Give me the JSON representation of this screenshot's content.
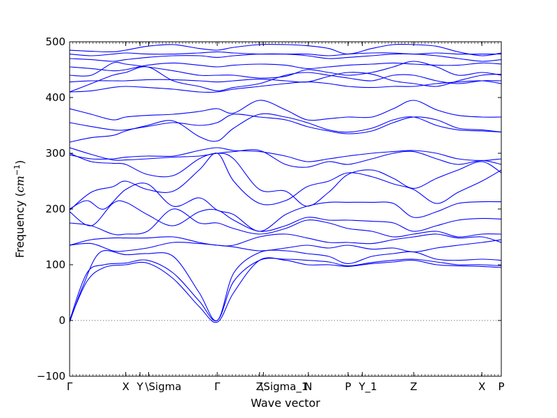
{
  "chart_data": {
    "type": "line",
    "xlabel": "Wave vector",
    "ylabel_prefix": "Frequency (",
    "ylabel_unit": "cm",
    "ylabel_exp": "−1",
    "ylabel_suffix": ")",
    "ylim": [
      -100,
      500
    ],
    "xlim": [
      0,
      1
    ],
    "y_ticks": [
      -100,
      0,
      100,
      200,
      300,
      400,
      500
    ],
    "y_tick_labels": [
      "−100",
      "0",
      "100",
      "200",
      "300",
      "400",
      "500"
    ],
    "x_ticks": [
      {
        "x": 0.0,
        "label": "Γ"
      },
      {
        "x": 0.13,
        "label": "X"
      },
      {
        "x": 0.163,
        "label": "Y"
      },
      {
        "x": 0.183,
        "label": "\\Sigma"
      },
      {
        "x": 0.342,
        "label": "Γ"
      },
      {
        "x": 0.44,
        "label": "Z"
      },
      {
        "x": 0.449,
        "label": "\\Sigma_1"
      },
      {
        "x": 0.553,
        "label": "N"
      },
      {
        "x": 0.645,
        "label": "P"
      },
      {
        "x": 0.678,
        "label": "Y_1"
      },
      {
        "x": 0.797,
        "label": "Z"
      },
      {
        "x": 0.955,
        "label": "X"
      },
      {
        "x": 1.0,
        "label": "P"
      }
    ],
    "zero_line": 0,
    "line_color": "#0000ff",
    "series": [
      {
        "x": [
          0,
          0.04,
          0.08,
          0.13,
          0.18,
          0.24,
          0.3,
          0.342,
          0.38,
          0.44,
          0.5,
          0.55,
          0.6,
          0.645,
          0.7,
          0.75,
          0.797,
          0.85,
          0.9,
          0.955,
          1.0
        ],
        "y": [
          0,
          70,
          95,
          100,
          103,
          75,
          25,
          -3,
          50,
          108,
          108,
          100,
          100,
          97,
          102,
          105,
          108,
          100,
          98,
          97,
          95
        ]
      },
      {
        "x": [
          0,
          0.04,
          0.08,
          0.13,
          0.18,
          0.24,
          0.3,
          0.342,
          0.38,
          0.44,
          0.5,
          0.55,
          0.6,
          0.645,
          0.7,
          0.75,
          0.797,
          0.85,
          0.9,
          0.955,
          1.0
        ],
        "y": [
          0,
          85,
          100,
          103,
          108,
          85,
          35,
          0,
          70,
          108,
          110,
          108,
          105,
          98,
          104,
          108,
          110,
          105,
          100,
          100,
          98
        ]
      },
      {
        "x": [
          0,
          0.03,
          0.07,
          0.13,
          0.18,
          0.24,
          0.3,
          0.342,
          0.38,
          0.44,
          0.5,
          0.55,
          0.6,
          0.645,
          0.7,
          0.75,
          0.797,
          0.85,
          0.9,
          0.955,
          1.0
        ],
        "y": [
          -3,
          60,
          122,
          118,
          120,
          115,
          50,
          0,
          85,
          122,
          125,
          120,
          115,
          102,
          115,
          120,
          123,
          110,
          108,
          110,
          108
        ]
      },
      {
        "x": [
          0,
          0.05,
          0.1,
          0.13,
          0.18,
          0.24,
          0.3,
          0.342,
          0.38,
          0.44,
          0.5,
          0.55,
          0.6,
          0.645,
          0.7,
          0.75,
          0.797,
          0.85,
          0.9,
          0.955,
          1.0
        ],
        "y": [
          135,
          138,
          125,
          125,
          130,
          140,
          138,
          135,
          132,
          125,
          130,
          135,
          130,
          135,
          128,
          130,
          123,
          130,
          135,
          140,
          145
        ]
      },
      {
        "x": [
          0,
          0.05,
          0.1,
          0.13,
          0.18,
          0.24,
          0.3,
          0.342,
          0.38,
          0.44,
          0.5,
          0.55,
          0.6,
          0.645,
          0.7,
          0.75,
          0.797,
          0.85,
          0.9,
          0.955,
          1.0
        ],
        "y": [
          135,
          145,
          148,
          148,
          148,
          150,
          140,
          135,
          135,
          150,
          155,
          148,
          140,
          140,
          138,
          145,
          150,
          155,
          148,
          150,
          140
        ]
      },
      {
        "x": [
          0,
          0.05,
          0.1,
          0.13,
          0.18,
          0.24,
          0.3,
          0.342,
          0.38,
          0.44,
          0.5,
          0.55,
          0.6,
          0.645,
          0.7,
          0.75,
          0.797,
          0.85,
          0.9,
          0.955,
          1.0
        ],
        "y": [
          175,
          170,
          155,
          155,
          160,
          200,
          175,
          175,
          165,
          155,
          165,
          180,
          175,
          165,
          160,
          150,
          155,
          160,
          150,
          155,
          155
        ]
      },
      {
        "x": [
          0,
          0.05,
          0.1,
          0.13,
          0.18,
          0.24,
          0.3,
          0.342,
          0.38,
          0.44,
          0.5,
          0.55,
          0.6,
          0.645,
          0.7,
          0.75,
          0.797,
          0.85,
          0.9,
          0.955,
          1.0
        ],
        "y": [
          195,
          170,
          210,
          212,
          190,
          170,
          195,
          198,
          180,
          160,
          170,
          185,
          180,
          180,
          178,
          175,
          160,
          170,
          180,
          183,
          182
        ]
      },
      {
        "x": [
          0,
          0.04,
          0.08,
          0.13,
          0.18,
          0.24,
          0.3,
          0.342,
          0.38,
          0.44,
          0.5,
          0.55,
          0.6,
          0.645,
          0.7,
          0.75,
          0.797,
          0.85,
          0.9,
          0.955,
          1.0
        ],
        "y": [
          200,
          215,
          200,
          235,
          245,
          205,
          220,
          198,
          190,
          160,
          190,
          205,
          212,
          212,
          212,
          210,
          185,
          195,
          210,
          213,
          213
        ]
      },
      {
        "x": [
          0,
          0.05,
          0.1,
          0.13,
          0.18,
          0.24,
          0.3,
          0.342,
          0.38,
          0.44,
          0.5,
          0.55,
          0.6,
          0.645,
          0.7,
          0.75,
          0.797,
          0.85,
          0.9,
          0.955,
          1.0
        ],
        "y": [
          198,
          230,
          240,
          250,
          235,
          232,
          270,
          300,
          250,
          210,
          215,
          240,
          250,
          265,
          258,
          245,
          235,
          210,
          230,
          250,
          270
        ]
      },
      {
        "x": [
          0,
          0.05,
          0.1,
          0.13,
          0.18,
          0.24,
          0.3,
          0.342,
          0.38,
          0.44,
          0.5,
          0.55,
          0.6,
          0.645,
          0.7,
          0.75,
          0.797,
          0.85,
          0.9,
          0.955,
          1.0
        ],
        "y": [
          300,
          285,
          282,
          280,
          262,
          260,
          290,
          300,
          290,
          235,
          232,
          205,
          230,
          262,
          270,
          255,
          237,
          255,
          270,
          285,
          265
        ]
      },
      {
        "x": [
          0,
          0.05,
          0.1,
          0.13,
          0.18,
          0.24,
          0.3,
          0.342,
          0.38,
          0.44,
          0.5,
          0.55,
          0.6,
          0.645,
          0.7,
          0.75,
          0.797,
          0.85,
          0.9,
          0.955,
          1.0
        ],
        "y": [
          310,
          298,
          288,
          288,
          290,
          293,
          295,
          300,
          303,
          305,
          280,
          275,
          285,
          280,
          290,
          300,
          303,
          290,
          280,
          287,
          280
        ]
      },
      {
        "x": [
          0,
          0.05,
          0.1,
          0.13,
          0.18,
          0.24,
          0.3,
          0.342,
          0.38,
          0.44,
          0.5,
          0.55,
          0.6,
          0.645,
          0.7,
          0.75,
          0.797,
          0.85,
          0.9,
          0.955,
          1.0
        ],
        "y": [
          297,
          290,
          290,
          293,
          295,
          295,
          305,
          310,
          305,
          303,
          295,
          285,
          290,
          295,
          300,
          303,
          305,
          300,
          290,
          287,
          290
        ]
      },
      {
        "x": [
          0,
          0.05,
          0.1,
          0.13,
          0.18,
          0.24,
          0.3,
          0.342,
          0.38,
          0.44,
          0.5,
          0.55,
          0.6,
          0.645,
          0.7,
          0.75,
          0.797,
          0.85,
          0.9,
          0.955,
          1.0
        ],
        "y": [
          320,
          328,
          332,
          340,
          350,
          358,
          330,
          322,
          345,
          370,
          365,
          355,
          342,
          338,
          345,
          360,
          365,
          350,
          342,
          340,
          338
        ]
      },
      {
        "x": [
          0,
          0.05,
          0.1,
          0.13,
          0.18,
          0.24,
          0.3,
          0.342,
          0.38,
          0.44,
          0.5,
          0.55,
          0.6,
          0.645,
          0.7,
          0.75,
          0.797,
          0.85,
          0.9,
          0.955,
          1.0
        ],
        "y": [
          355,
          348,
          342,
          342,
          348,
          355,
          350,
          355,
          370,
          365,
          360,
          348,
          340,
          335,
          340,
          355,
          365,
          360,
          345,
          342,
          338
        ]
      },
      {
        "x": [
          0,
          0.05,
          0.1,
          0.13,
          0.18,
          0.24,
          0.3,
          0.342,
          0.38,
          0.44,
          0.5,
          0.55,
          0.6,
          0.645,
          0.7,
          0.75,
          0.797,
          0.85,
          0.9,
          0.955,
          1.0
        ],
        "y": [
          380,
          370,
          360,
          365,
          368,
          370,
          375,
          380,
          372,
          395,
          378,
          360,
          362,
          365,
          365,
          380,
          395,
          378,
          368,
          365,
          365
        ]
      },
      {
        "x": [
          0,
          0.05,
          0.1,
          0.13,
          0.18,
          0.24,
          0.3,
          0.342,
          0.38,
          0.44,
          0.5,
          0.55,
          0.6,
          0.645,
          0.7,
          0.75,
          0.797,
          0.85,
          0.9,
          0.955,
          1.0
        ],
        "y": [
          410,
          412,
          418,
          420,
          418,
          415,
          410,
          410,
          415,
          420,
          425,
          428,
          425,
          420,
          418,
          420,
          420,
          425,
          428,
          430,
          425
        ]
      },
      {
        "x": [
          0,
          0.05,
          0.1,
          0.13,
          0.18,
          0.24,
          0.3,
          0.342,
          0.38,
          0.44,
          0.5,
          0.55,
          0.6,
          0.645,
          0.7,
          0.75,
          0.797,
          0.85,
          0.9,
          0.955,
          1.0
        ],
        "y": [
          410,
          425,
          440,
          445,
          455,
          430,
          420,
          412,
          418,
          425,
          440,
          445,
          440,
          435,
          430,
          440,
          440,
          430,
          425,
          430,
          430
        ]
      },
      {
        "x": [
          0,
          0.05,
          0.1,
          0.13,
          0.18,
          0.24,
          0.3,
          0.342,
          0.38,
          0.44,
          0.5,
          0.55,
          0.6,
          0.645,
          0.7,
          0.75,
          0.797,
          0.85,
          0.9,
          0.955,
          1.0
        ],
        "y": [
          428,
          430,
          430,
          430,
          432,
          432,
          430,
          428,
          430,
          433,
          430,
          428,
          438,
          445,
          442,
          430,
          425,
          420,
          430,
          440,
          442
        ]
      },
      {
        "x": [
          0,
          0.05,
          0.1,
          0.13,
          0.18,
          0.24,
          0.3,
          0.342,
          0.38,
          0.44,
          0.5,
          0.55,
          0.6,
          0.645,
          0.7,
          0.75,
          0.797,
          0.85,
          0.9,
          0.955,
          1.0
        ],
        "y": [
          440,
          440,
          462,
          460,
          455,
          448,
          440,
          440,
          440,
          435,
          438,
          450,
          445,
          440,
          445,
          455,
          465,
          455,
          440,
          445,
          440
        ]
      },
      {
        "x": [
          0,
          0.05,
          0.1,
          0.13,
          0.18,
          0.24,
          0.3,
          0.342,
          0.38,
          0.44,
          0.5,
          0.55,
          0.6,
          0.645,
          0.7,
          0.75,
          0.797,
          0.85,
          0.9,
          0.955,
          1.0
        ],
        "y": [
          455,
          452,
          448,
          450,
          458,
          462,
          458,
          455,
          458,
          460,
          458,
          452,
          455,
          458,
          460,
          462,
          460,
          458,
          458,
          462,
          460
        ]
      },
      {
        "x": [
          0,
          0.05,
          0.1,
          0.13,
          0.18,
          0.24,
          0.3,
          0.342,
          0.38,
          0.44,
          0.5,
          0.55,
          0.6,
          0.645,
          0.7,
          0.75,
          0.797,
          0.85,
          0.9,
          0.955,
          1.0
        ],
        "y": [
          470,
          468,
          465,
          468,
          472,
          475,
          475,
          472,
          475,
          478,
          478,
          475,
          470,
          472,
          475,
          478,
          478,
          475,
          470,
          465,
          468
        ]
      },
      {
        "x": [
          0,
          0.05,
          0.1,
          0.13,
          0.18,
          0.24,
          0.3,
          0.342,
          0.38,
          0.44,
          0.5,
          0.55,
          0.6,
          0.645,
          0.7,
          0.75,
          0.797,
          0.85,
          0.9,
          0.955,
          1.0
        ],
        "y": [
          478,
          475,
          478,
          480,
          478,
          478,
          480,
          482,
          480,
          478,
          478,
          478,
          475,
          478,
          480,
          480,
          478,
          480,
          478,
          478,
          478
        ]
      },
      {
        "x": [
          0,
          0.05,
          0.1,
          0.13,
          0.18,
          0.24,
          0.3,
          0.342,
          0.38,
          0.44,
          0.5,
          0.55,
          0.6,
          0.645,
          0.7,
          0.75,
          0.797,
          0.85,
          0.9,
          0.955,
          1.0
        ],
        "y": [
          485,
          483,
          482,
          485,
          492,
          495,
          488,
          485,
          490,
          495,
          495,
          493,
          488,
          478,
          488,
          495,
          495,
          492,
          482,
          475,
          480
        ]
      }
    ]
  }
}
